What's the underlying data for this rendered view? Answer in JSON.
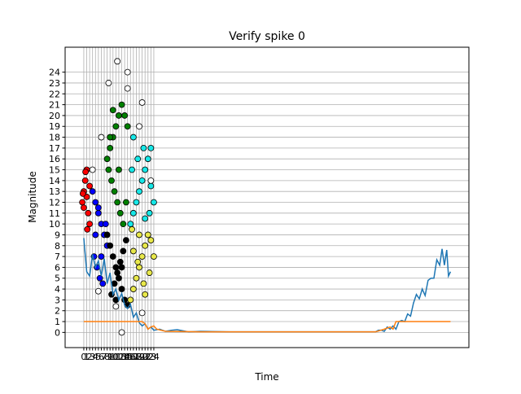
{
  "chart_data": {
    "type": "line",
    "title": "Verify spike 0",
    "xlabel": "Time",
    "ylabel": "Magnitude",
    "xlim": [
      -6.4,
      132
    ],
    "ylim": [
      -1.4,
      26.3
    ],
    "xticks": [
      0,
      1,
      2,
      3,
      4,
      5,
      6,
      7,
      8,
      9,
      10,
      11,
      12,
      13,
      14,
      15,
      16,
      17,
      18,
      19,
      20,
      21,
      22,
      23,
      24
    ],
    "yticks": [
      0,
      1,
      2,
      3,
      4,
      5,
      6,
      7,
      8,
      9,
      10,
      11,
      12,
      13,
      14,
      15,
      16,
      17,
      18,
      19,
      20,
      21,
      22,
      23,
      24
    ],
    "grid": true,
    "series": [
      {
        "color": "#1f77b4",
        "x": [
          0,
          1,
          2,
          3,
          4,
          5,
          6,
          7,
          8,
          9,
          10,
          11,
          12,
          13,
          14,
          15,
          16,
          17,
          18,
          19,
          20,
          21,
          22,
          23,
          24,
          26,
          28,
          30,
          32,
          34,
          36,
          40,
          50,
          60,
          70,
          80,
          90,
          100,
          101,
          102,
          103,
          104,
          105,
          106,
          107,
          108,
          109,
          110,
          111,
          112,
          113,
          114,
          115,
          116,
          117,
          118,
          119,
          120,
          121,
          122,
          122.8,
          123.6,
          124.4,
          125,
          125.7
        ],
        "y": [
          8.7,
          5.6,
          5.2,
          7.2,
          6.0,
          6.6,
          5.2,
          6.8,
          4.5,
          5.5,
          3.5,
          4.0,
          3.0,
          3.6,
          2.5,
          2.2,
          2.6,
          1.4,
          1.8,
          0.9,
          0.6,
          0.8,
          0.3,
          0.5,
          0.2,
          0.3,
          0.1,
          0.2,
          0.25,
          0.15,
          0.05,
          0.1,
          0.05,
          0.05,
          0.05,
          0.05,
          0.05,
          0.05,
          0.2,
          0.2,
          0.1,
          0.5,
          0.3,
          0.6,
          0.3,
          1.0,
          1.1,
          1.0,
          1.7,
          1.5,
          2.7,
          3.5,
          3.1,
          4.0,
          3.4,
          4.8,
          5.0,
          5.0,
          6.7,
          6.2,
          7.7,
          6.2,
          7.6,
          5.2,
          5.6
        ]
      },
      {
        "color": "#ff7f0e",
        "x": [
          0,
          20,
          21,
          22,
          23,
          24,
          25,
          28,
          40,
          100,
          103,
          105,
          106,
          107,
          125.7
        ],
        "y": [
          1,
          1,
          0.8,
          0.3,
          0.5,
          0.6,
          0.3,
          0.1,
          0.05,
          0.05,
          0.3,
          0.5,
          0.3,
          1.0,
          1.0
        ]
      }
    ],
    "scatter_series": [
      {
        "color": "#ff0000",
        "x": [
          -0.5,
          0,
          0.5,
          1,
          1.5,
          2,
          0,
          1,
          2,
          -0.3,
          1.2,
          0.6
        ],
        "y": [
          12,
          13,
          14,
          15,
          11,
          10,
          11.5,
          12.5,
          13.5,
          12.8,
          9.5,
          14.8
        ]
      },
      {
        "color": "#0000ff",
        "x": [
          3,
          4,
          5,
          6,
          7,
          8,
          3.5,
          4.5,
          5.5,
          6.5,
          7.5,
          4,
          6,
          5
        ],
        "y": [
          13,
          12,
          11,
          10,
          9,
          8,
          7,
          6,
          5,
          4.5,
          10,
          9,
          7,
          11.5
        ]
      },
      {
        "color": "#008000",
        "x": [
          8,
          9,
          10,
          11,
          12,
          13,
          14,
          15,
          8.5,
          9.5,
          10.5,
          11.5,
          12.5,
          13.5,
          14.5,
          10,
          12,
          9
        ],
        "y": [
          16,
          17,
          18,
          19,
          20,
          21,
          20,
          19,
          15,
          14,
          13,
          12,
          11,
          10,
          12,
          20.5,
          15,
          18
        ]
      },
      {
        "color": "#000000",
        "x": [
          8,
          9,
          10,
          11,
          12,
          13,
          14,
          15,
          9.5,
          10.5,
          11.5,
          12.5,
          13.5,
          14.5,
          11,
          13
        ],
        "y": [
          9,
          8,
          7,
          6,
          5,
          4,
          3,
          2.5,
          3.5,
          4.5,
          5.5,
          6.5,
          7.5,
          8.5,
          3,
          6
        ]
      },
      {
        "color": "#17e8e8",
        "x": [
          16,
          17,
          18,
          19,
          20,
          21,
          22,
          23,
          24,
          16.5,
          18.5,
          20.5,
          22.5,
          17,
          21,
          23
        ],
        "y": [
          10,
          11,
          12,
          13,
          14,
          15,
          16,
          17,
          12,
          15,
          16,
          17,
          11,
          18,
          10.5,
          13.5
        ]
      },
      {
        "color": "#e8e84a",
        "x": [
          16,
          17,
          18,
          19,
          20,
          21,
          22,
          23,
          24,
          16.5,
          18.5,
          20.5,
          22.5,
          17,
          21,
          19
        ],
        "y": [
          3,
          4,
          5,
          6,
          7,
          8,
          9,
          8.5,
          7,
          9.5,
          6.5,
          4.5,
          5.5,
          7.5,
          3.5,
          9
        ]
      },
      {
        "color": "#ffffff",
        "x": [
          11.5,
          13,
          15,
          8.5,
          15,
          20,
          19,
          6,
          3,
          5,
          11,
          20,
          23
        ],
        "y": [
          25,
          0,
          24,
          23,
          22.5,
          21.2,
          19,
          18,
          15,
          3.8,
          2.4,
          1.8,
          14
        ]
      }
    ]
  }
}
